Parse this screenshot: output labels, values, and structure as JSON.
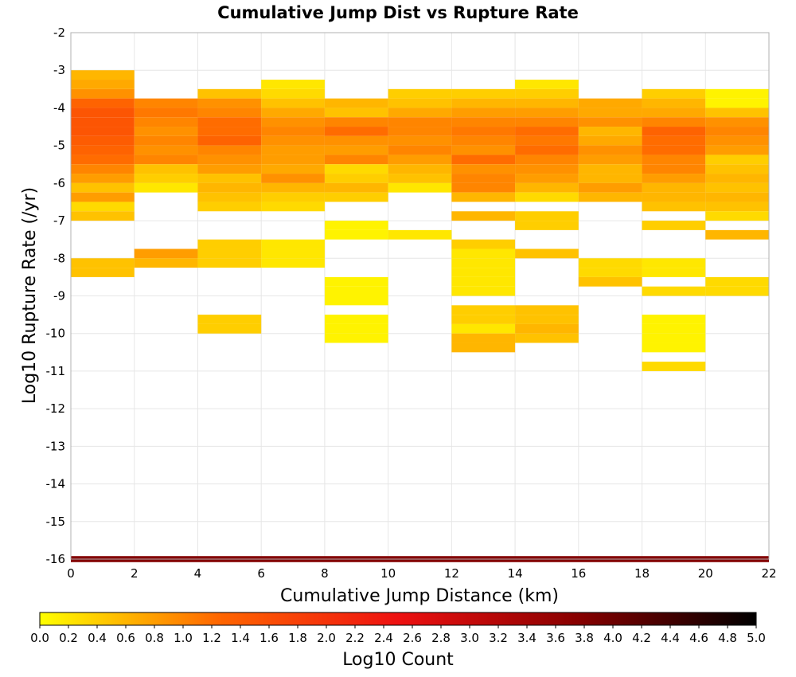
{
  "chart_data": {
    "type": "heatmap",
    "title": "Cumulative Jump Dist vs Rupture Rate",
    "xlabel": "Cumulative Jump Distance (km)",
    "ylabel": "Log10 Rupture Rate (/yr)",
    "xlim": [
      0,
      22
    ],
    "ylim": [
      -16,
      -2
    ],
    "x_ticks": [
      0,
      2,
      4,
      6,
      8,
      10,
      12,
      14,
      16,
      18,
      20,
      22
    ],
    "y_ticks": [
      -2,
      -3,
      -4,
      -5,
      -6,
      -7,
      -8,
      -9,
      -10,
      -11,
      -12,
      -13,
      -14,
      -15,
      -16
    ],
    "x_bin_width": 2,
    "y_bin_height": 0.25,
    "grid": true,
    "colorbar": {
      "label": "Log10 Count",
      "range": [
        0,
        5
      ],
      "ticks": [
        "0.0",
        "0.2",
        "0.4",
        "0.6",
        "0.8",
        "1.0",
        "1.2",
        "1.4",
        "1.6",
        "1.8",
        "2.0",
        "2.2",
        "2.4",
        "2.6",
        "2.8",
        "3.0",
        "3.2",
        "3.4",
        "3.6",
        "3.8",
        "4.0",
        "4.2",
        "4.4",
        "4.6",
        "4.8",
        "5.0"
      ],
      "colors": [
        "#ffff00",
        "#ff6600",
        "#ee1111",
        "#880000",
        "#000000"
      ],
      "placement": "bottom"
    },
    "bottom_row": {
      "y": -16,
      "value": 3.8
    },
    "columns": [
      {
        "x": 1,
        "cells": [
          [
            -3.125,
            0.6
          ],
          [
            -3.375,
            0.7
          ],
          [
            -3.625,
            0.9
          ],
          [
            -3.875,
            1.3
          ],
          [
            -4.125,
            1.5
          ],
          [
            -4.375,
            1.5
          ],
          [
            -4.625,
            1.5
          ],
          [
            -4.875,
            1.4
          ],
          [
            -5.125,
            1.3
          ],
          [
            -5.375,
            1.2
          ],
          [
            -5.625,
            1.0
          ],
          [
            -5.875,
            0.8
          ],
          [
            -6.125,
            0.5
          ],
          [
            -6.375,
            0.8
          ],
          [
            -6.625,
            0.3
          ],
          [
            -6.875,
            0.5
          ],
          [
            -8.125,
            0.5
          ],
          [
            -8.375,
            0.5
          ]
        ]
      },
      {
        "x": 3,
        "cells": [
          [
            -3.875,
            1.0
          ],
          [
            -4.125,
            1.1
          ],
          [
            -4.375,
            1.0
          ],
          [
            -4.625,
            0.9
          ],
          [
            -4.875,
            1.0
          ],
          [
            -5.125,
            0.9
          ],
          [
            -5.375,
            1.0
          ],
          [
            -5.625,
            0.5
          ],
          [
            -5.875,
            0.4
          ],
          [
            -6.125,
            0.2
          ],
          [
            -7.875,
            0.8
          ],
          [
            -8.125,
            0.6
          ]
        ]
      },
      {
        "x": 5,
        "cells": [
          [
            -3.625,
            0.5
          ],
          [
            -3.875,
            0.9
          ],
          [
            -4.125,
            1.0
          ],
          [
            -4.375,
            1.2
          ],
          [
            -4.625,
            1.2
          ],
          [
            -4.875,
            1.3
          ],
          [
            -5.125,
            1.0
          ],
          [
            -5.375,
            0.9
          ],
          [
            -5.625,
            0.8
          ],
          [
            -5.875,
            0.5
          ],
          [
            -6.125,
            0.6
          ],
          [
            -6.375,
            0.5
          ],
          [
            -6.625,
            0.4
          ],
          [
            -7.625,
            0.4
          ],
          [
            -7.875,
            0.4
          ],
          [
            -8.125,
            0.4
          ],
          [
            -9.625,
            0.4
          ],
          [
            -9.875,
            0.4
          ]
        ]
      },
      {
        "x": 7,
        "cells": [
          [
            -3.375,
            0.2
          ],
          [
            -3.625,
            0.3
          ],
          [
            -3.875,
            0.5
          ],
          [
            -4.125,
            0.7
          ],
          [
            -4.375,
            0.9
          ],
          [
            -4.625,
            1.0
          ],
          [
            -4.875,
            0.9
          ],
          [
            -5.125,
            0.8
          ],
          [
            -5.375,
            0.8
          ],
          [
            -5.625,
            0.7
          ],
          [
            -5.875,
            0.9
          ],
          [
            -6.125,
            0.6
          ],
          [
            -6.375,
            0.4
          ],
          [
            -6.625,
            0.3
          ],
          [
            -7.625,
            0.2
          ],
          [
            -7.875,
            0.2
          ],
          [
            -8.125,
            0.2
          ]
        ]
      },
      {
        "x": 9,
        "cells": [
          [
            -3.875,
            0.6
          ],
          [
            -4.125,
            0.5
          ],
          [
            -4.375,
            1.0
          ],
          [
            -4.625,
            1.2
          ],
          [
            -4.875,
            0.9
          ],
          [
            -5.125,
            0.8
          ],
          [
            -5.375,
            1.0
          ],
          [
            -5.625,
            0.3
          ],
          [
            -5.875,
            0.4
          ],
          [
            -6.125,
            0.6
          ],
          [
            -6.375,
            0.4
          ],
          [
            -7.125,
            0.1
          ],
          [
            -7.375,
            0.1
          ],
          [
            -8.625,
            0.1
          ],
          [
            -8.875,
            0.1
          ],
          [
            -9.125,
            0.1
          ],
          [
            -9.625,
            0.1
          ],
          [
            -9.875,
            0.1
          ],
          [
            -10.125,
            0.1
          ]
        ]
      },
      {
        "x": 11,
        "cells": [
          [
            -3.625,
            0.4
          ],
          [
            -3.875,
            0.5
          ],
          [
            -4.125,
            0.7
          ],
          [
            -4.375,
            1.0
          ],
          [
            -4.625,
            1.0
          ],
          [
            -4.875,
            0.9
          ],
          [
            -5.125,
            1.0
          ],
          [
            -5.375,
            0.8
          ],
          [
            -5.625,
            0.6
          ],
          [
            -5.875,
            0.5
          ],
          [
            -6.125,
            0.2
          ],
          [
            -7.375,
            0.2
          ]
        ]
      },
      {
        "x": 13,
        "cells": [
          [
            -3.625,
            0.4
          ],
          [
            -3.875,
            0.6
          ],
          [
            -4.125,
            0.8
          ],
          [
            -4.375,
            1.0
          ],
          [
            -4.625,
            1.1
          ],
          [
            -4.875,
            1.0
          ],
          [
            -5.125,
            0.9
          ],
          [
            -5.375,
            1.2
          ],
          [
            -5.625,
            0.9
          ],
          [
            -5.875,
            1.0
          ],
          [
            -6.125,
            1.0
          ],
          [
            -6.375,
            0.6
          ],
          [
            -6.875,
            0.6
          ],
          [
            -7.625,
            0.4
          ],
          [
            -7.875,
            0.2
          ],
          [
            -8.125,
            0.2
          ],
          [
            -8.375,
            0.2
          ],
          [
            -8.625,
            0.2
          ],
          [
            -8.875,
            0.2
          ],
          [
            -9.375,
            0.4
          ],
          [
            -9.625,
            0.4
          ],
          [
            -9.875,
            0.2
          ],
          [
            -10.125,
            0.6
          ],
          [
            -10.375,
            0.6
          ]
        ]
      },
      {
        "x": 15,
        "cells": [
          [
            -3.375,
            0.2
          ],
          [
            -3.625,
            0.4
          ],
          [
            -3.875,
            0.6
          ],
          [
            -4.125,
            0.8
          ],
          [
            -4.375,
            1.0
          ],
          [
            -4.625,
            1.2
          ],
          [
            -4.875,
            1.1
          ],
          [
            -5.125,
            1.2
          ],
          [
            -5.375,
            1.0
          ],
          [
            -5.625,
            0.9
          ],
          [
            -5.875,
            0.8
          ],
          [
            -6.125,
            0.6
          ],
          [
            -6.375,
            0.3
          ],
          [
            -6.875,
            0.4
          ],
          [
            -7.125,
            0.4
          ],
          [
            -7.875,
            0.5
          ],
          [
            -9.375,
            0.5
          ],
          [
            -9.625,
            0.5
          ],
          [
            -9.875,
            0.6
          ],
          [
            -10.125,
            0.5
          ]
        ]
      },
      {
        "x": 17,
        "cells": [
          [
            -3.875,
            0.7
          ],
          [
            -4.125,
            0.7
          ],
          [
            -4.375,
            0.9
          ],
          [
            -4.625,
            0.6
          ],
          [
            -4.875,
            0.7
          ],
          [
            -5.125,
            0.9
          ],
          [
            -5.375,
            0.8
          ],
          [
            -5.625,
            0.6
          ],
          [
            -5.875,
            0.6
          ],
          [
            -6.125,
            0.8
          ],
          [
            -6.375,
            0.6
          ],
          [
            -8.125,
            0.3
          ],
          [
            -8.375,
            0.3
          ],
          [
            -8.625,
            0.5
          ]
        ]
      },
      {
        "x": 19,
        "cells": [
          [
            -3.625,
            0.4
          ],
          [
            -3.875,
            0.6
          ],
          [
            -4.125,
            0.7
          ],
          [
            -4.375,
            1.0
          ],
          [
            -4.625,
            1.3
          ],
          [
            -4.875,
            1.2
          ],
          [
            -5.125,
            1.2
          ],
          [
            -5.375,
            1.0
          ],
          [
            -5.625,
            1.0
          ],
          [
            -5.875,
            0.8
          ],
          [
            -6.125,
            0.6
          ],
          [
            -6.375,
            0.6
          ],
          [
            -6.625,
            0.5
          ],
          [
            -7.125,
            0.4
          ],
          [
            -8.125,
            0.2
          ],
          [
            -8.375,
            0.2
          ],
          [
            -8.875,
            0.3
          ],
          [
            -9.625,
            0.1
          ],
          [
            -9.875,
            0.1
          ],
          [
            -10.125,
            0.1
          ],
          [
            -10.375,
            0.1
          ],
          [
            -10.875,
            0.3
          ]
        ]
      },
      {
        "x": 21,
        "cells": [
          [
            -3.625,
            0.1
          ],
          [
            -3.875,
            0.1
          ],
          [
            -4.125,
            0.5
          ],
          [
            -4.375,
            0.9
          ],
          [
            -4.625,
            1.0
          ],
          [
            -4.875,
            0.9
          ],
          [
            -5.125,
            0.8
          ],
          [
            -5.375,
            0.4
          ],
          [
            -5.625,
            0.5
          ],
          [
            -5.875,
            0.6
          ],
          [
            -6.125,
            0.5
          ],
          [
            -6.375,
            0.6
          ],
          [
            -6.625,
            0.5
          ],
          [
            -6.875,
            0.3
          ],
          [
            -7.375,
            0.6
          ],
          [
            -8.625,
            0.3
          ],
          [
            -8.875,
            0.3
          ]
        ]
      }
    ]
  }
}
